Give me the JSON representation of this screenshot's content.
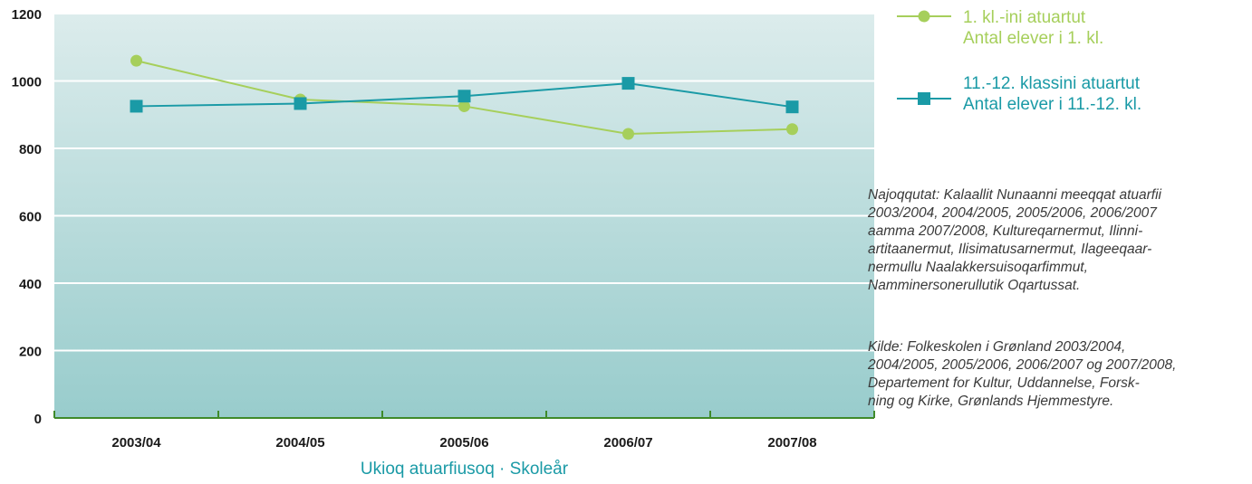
{
  "chart_data": {
    "type": "line",
    "categories": [
      "2003/04",
      "2004/05",
      "2005/06",
      "2006/07",
      "2007/08"
    ],
    "series": [
      {
        "name_lines": [
          "1. kl.-ini atuartut",
          "Antal elever i 1. kl."
        ],
        "values": [
          1060,
          945,
          925,
          843,
          857
        ],
        "color": "#a6cf5b",
        "marker": "circle"
      },
      {
        "name_lines": [
          "11.-12. klassini atuartut",
          "Antal elever i 11.-12. kl."
        ],
        "values": [
          925,
          933,
          955,
          993,
          923
        ],
        "color": "#1a9aa6",
        "marker": "square"
      }
    ],
    "ylim": [
      0,
      1200
    ],
    "yticks": [
      0,
      200,
      400,
      600,
      800,
      1000,
      1200
    ],
    "xlabel": "Ukioq atuarfiusoq · Skoleår",
    "grid": true,
    "legend_position": "top-right",
    "background_gradient": [
      "#dcecec",
      "#98cccc"
    ],
    "axis_color": "#3f8a2a"
  },
  "notes": {
    "greenlandic": [
      "Najoqqutat: Kalaallit Nunaanni meeqqat atuarfii",
      "2003/2004, 2004/2005, 2005/2006, 2006/2007",
      "aamma 2007/2008, Kultureqarnermut, Ilinni-",
      "artitaanermut, Ilisimatusarnermut, Ilageeqaar-",
      "nermullu Naalakkersuisoqarfimmut,",
      "Namminersonerullutik Oqartussat."
    ],
    "danish": [
      "Kilde: Folkeskolen i Grønland 2003/2004,",
      "2004/2005, 2005/2006, 2006/2007 og 2007/2008,",
      "Departement for Kultur, Uddannelse, Forsk-",
      "ning og Kirke, Grønlands Hjemmestyre."
    ]
  }
}
